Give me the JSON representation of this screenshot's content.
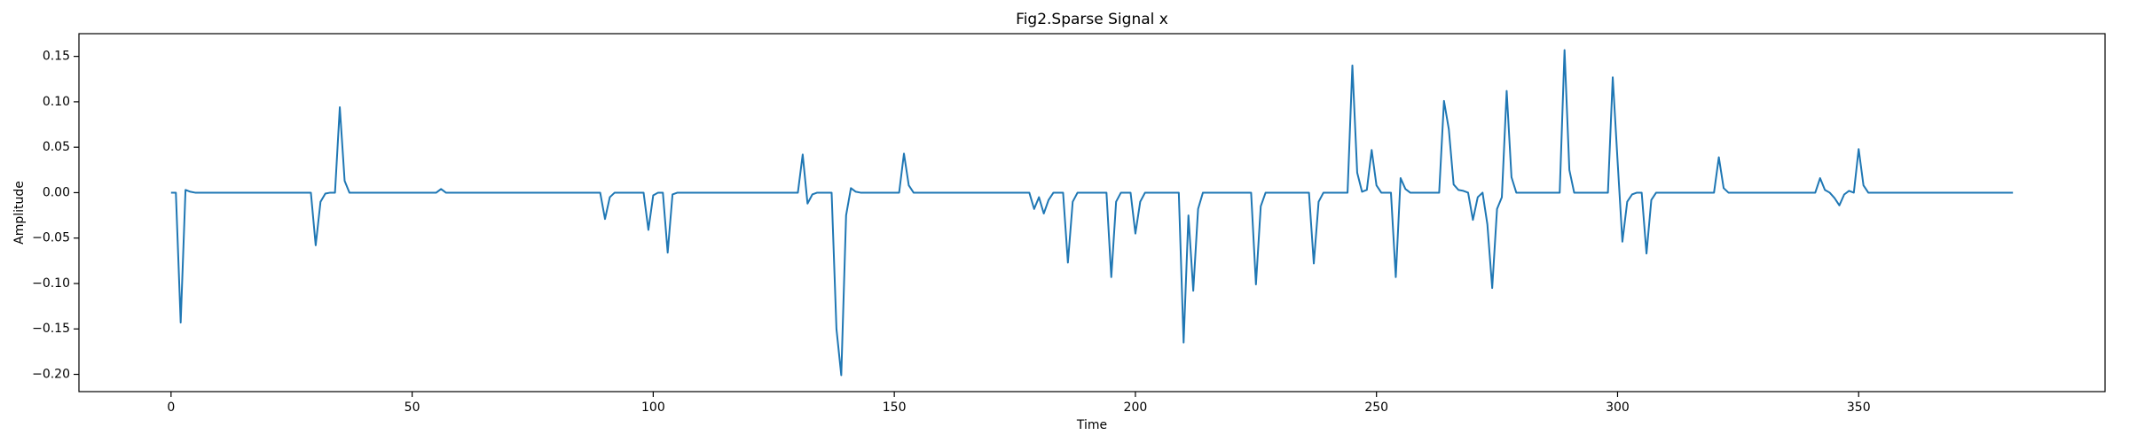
{
  "chart_data": {
    "type": "line",
    "title": "Fig2.Sparse Signal x",
    "x_label": "Time",
    "y_label": "Amplitude",
    "color": "#1f77b4",
    "grid": false,
    "x": [
      0,
      1,
      2,
      3,
      4,
      5,
      6,
      7,
      8,
      9,
      10,
      11,
      12,
      13,
      14,
      15,
      16,
      17,
      18,
      19,
      20,
      21,
      22,
      23,
      24,
      25,
      26,
      27,
      28,
      29,
      30,
      31,
      32,
      33,
      34,
      35,
      36,
      37,
      38,
      39,
      40,
      41,
      42,
      43,
      44,
      45,
      46,
      47,
      48,
      49,
      50,
      51,
      52,
      53,
      54,
      55,
      56,
      57,
      58,
      59,
      60,
      61,
      62,
      63,
      64,
      65,
      66,
      67,
      68,
      69,
      70,
      71,
      72,
      73,
      74,
      75,
      76,
      77,
      78,
      79,
      80,
      81,
      82,
      83,
      84,
      85,
      86,
      87,
      88,
      89,
      90,
      91,
      92,
      93,
      94,
      95,
      96,
      97,
      98,
      99,
      100,
      101,
      102,
      103,
      104,
      105,
      106,
      107,
      108,
      109,
      110,
      111,
      112,
      113,
      114,
      115,
      116,
      117,
      118,
      119,
      120,
      121,
      122,
      123,
      124,
      125,
      126,
      127,
      128,
      129,
      130,
      131,
      132,
      133,
      134,
      135,
      136,
      137,
      138,
      139,
      140,
      141,
      142,
      143,
      144,
      145,
      146,
      147,
      148,
      149,
      150,
      151,
      152,
      153,
      154,
      155,
      156,
      157,
      158,
      159,
      160,
      161,
      162,
      163,
      164,
      165,
      166,
      167,
      168,
      169,
      170,
      171,
      172,
      173,
      174,
      175,
      176,
      177,
      178,
      179,
      180,
      181,
      182,
      183,
      184,
      185,
      186,
      187,
      188,
      189,
      190,
      191,
      192,
      193,
      194,
      195,
      196,
      197,
      198,
      199,
      200,
      201,
      202,
      203,
      204,
      205,
      206,
      207,
      208,
      209,
      210,
      211,
      212,
      213,
      214,
      215,
      216,
      217,
      218,
      219,
      220,
      221,
      222,
      223,
      224,
      225,
      226,
      227,
      228,
      229,
      230,
      231,
      232,
      233,
      234,
      235,
      236,
      237,
      238,
      239,
      240,
      241,
      242,
      243,
      244,
      245,
      246,
      247,
      248,
      249,
      250,
      251,
      252,
      253,
      254,
      255,
      256,
      257,
      258,
      259,
      260,
      261,
      262,
      263,
      264,
      265,
      266,
      267,
      268,
      269,
      270,
      271,
      272,
      273,
      274,
      275,
      276,
      277,
      278,
      279,
      280,
      281,
      282,
      283,
      284,
      285,
      286,
      287,
      288,
      289,
      290,
      291,
      292,
      293,
      294,
      295,
      296,
      297,
      298,
      299,
      300,
      301,
      302,
      303,
      304,
      305,
      306,
      307,
      308,
      309,
      310,
      311,
      312,
      313,
      314,
      315,
      316,
      317,
      318,
      319,
      320,
      321,
      322,
      323,
      324,
      325,
      326,
      327,
      328,
      329,
      330,
      331,
      332,
      333,
      334,
      335,
      336,
      337,
      338,
      339,
      340,
      341,
      342,
      343,
      344,
      345,
      346,
      347,
      348,
      349,
      350,
      351,
      352,
      353,
      354,
      355,
      356,
      357,
      358,
      359,
      360,
      361,
      362,
      363,
      364,
      365,
      366,
      367,
      368,
      369,
      370,
      371,
      372,
      373,
      374,
      375,
      376,
      377,
      378,
      379,
      380,
      381,
      382
    ],
    "values": [
      0,
      0,
      -0.143,
      0.003,
      0.001,
      0,
      0,
      0,
      0,
      0,
      0,
      0,
      0,
      0,
      0,
      0,
      0,
      0,
      0,
      0,
      0,
      0,
      0,
      0,
      0,
      0,
      0,
      0,
      0,
      0,
      -0.058,
      -0.01,
      -0.001,
      0,
      0,
      0.094,
      0.013,
      0,
      0,
      0,
      0,
      0,
      0,
      0,
      0,
      0,
      0,
      0,
      0,
      0,
      0,
      0,
      0,
      0,
      0,
      0,
      0.004,
      0,
      0,
      0,
      0,
      0,
      0,
      0,
      0,
      0,
      0,
      0,
      0,
      0,
      0,
      0,
      0,
      0,
      0,
      0,
      0,
      0,
      0,
      0,
      0,
      0,
      0,
      0,
      0,
      0,
      0,
      0,
      0,
      0,
      -0.029,
      -0.005,
      0,
      0,
      0,
      0,
      0,
      0,
      0,
      -0.041,
      -0.003,
      0,
      0,
      -0.066,
      -0.002,
      0,
      0,
      0,
      0,
      0,
      0,
      0,
      0,
      0,
      0,
      0,
      0,
      0,
      0,
      0,
      0,
      0,
      0,
      0,
      0,
      0,
      0,
      0,
      0,
      0,
      0,
      0.042,
      -0.012,
      -0.002,
      0,
      0,
      0,
      0,
      -0.15,
      -0.201,
      -0.025,
      0.005,
      0.001,
      0,
      0,
      0,
      0,
      0,
      0,
      0,
      0,
      0,
      0.043,
      0.008,
      0,
      0,
      0,
      0,
      0,
      0,
      0,
      0,
      0,
      0,
      0,
      0,
      0,
      0,
      0,
      0,
      0,
      0,
      0,
      0,
      0,
      0,
      0,
      0,
      0,
      -0.018,
      -0.005,
      -0.023,
      -0.008,
      0,
      0,
      0,
      -0.077,
      -0.01,
      0,
      0,
      0,
      0,
      0,
      0,
      0,
      -0.093,
      -0.01,
      0,
      0,
      0,
      -0.045,
      -0.01,
      0,
      0,
      0,
      0,
      0,
      0,
      0,
      0,
      -0.165,
      -0.025,
      -0.108,
      -0.018,
      0,
      0,
      0,
      0,
      0,
      0,
      0,
      0,
      0,
      0,
      0,
      -0.101,
      -0.015,
      0,
      0,
      0,
      0,
      0,
      0,
      0,
      0,
      0,
      0,
      -0.078,
      -0.01,
      0,
      0,
      0,
      0,
      0,
      0,
      0.14,
      0.022,
      0.001,
      0.003,
      0.047,
      0.008,
      0,
      0,
      0,
      -0.093,
      0.016,
      0.004,
      0,
      0,
      0,
      0,
      0,
      0,
      0,
      0.101,
      0.07,
      0.009,
      0.003,
      0.002,
      0,
      -0.03,
      -0.005,
      0,
      -0.035,
      -0.105,
      -0.018,
      -0.005,
      0.112,
      0.017,
      0,
      0,
      0,
      0,
      0,
      0,
      0,
      0,
      0,
      0,
      0.157,
      0.025,
      0,
      0,
      0,
      0,
      0,
      0,
      0,
      0,
      0.127,
      0.035,
      -0.054,
      -0.01,
      -0.002,
      0,
      0,
      -0.067,
      -0.008,
      0,
      0,
      0,
      0,
      0,
      0,
      0,
      0,
      0,
      0,
      0,
      0,
      0,
      0.039,
      0.005,
      0,
      0,
      0,
      0,
      0,
      0,
      0,
      0,
      0,
      0,
      0,
      0,
      0,
      0,
      0,
      0,
      0,
      0,
      0,
      0.016,
      0.003,
      0,
      -0.006,
      -0.014,
      -0.002,
      0.002,
      0,
      0.048,
      0.008,
      0,
      0,
      0,
      0,
      0,
      0,
      0,
      0,
      0,
      0,
      0,
      0,
      0,
      0,
      0,
      0,
      0,
      0,
      0,
      0,
      0,
      0,
      0,
      0,
      0,
      0,
      0,
      0,
      0,
      0,
      0
    ],
    "xlim": [
      -19.1,
      401.1
    ],
    "xticks": [
      0,
      50,
      100,
      150,
      200,
      250,
      300,
      350
    ],
    "ylim": [
      -0.219,
      0.175
    ],
    "yticks": [
      {
        "value": -0.2,
        "label": "−0.20"
      },
      {
        "value": -0.15,
        "label": "−0.15"
      },
      {
        "value": -0.1,
        "label": "−0.10"
      },
      {
        "value": -0.05,
        "label": "−0.05"
      },
      {
        "value": 0,
        "label": "0.00"
      },
      0.05,
      {
        "value": 0.1,
        "label": "0.10"
      },
      0.15
    ]
  }
}
